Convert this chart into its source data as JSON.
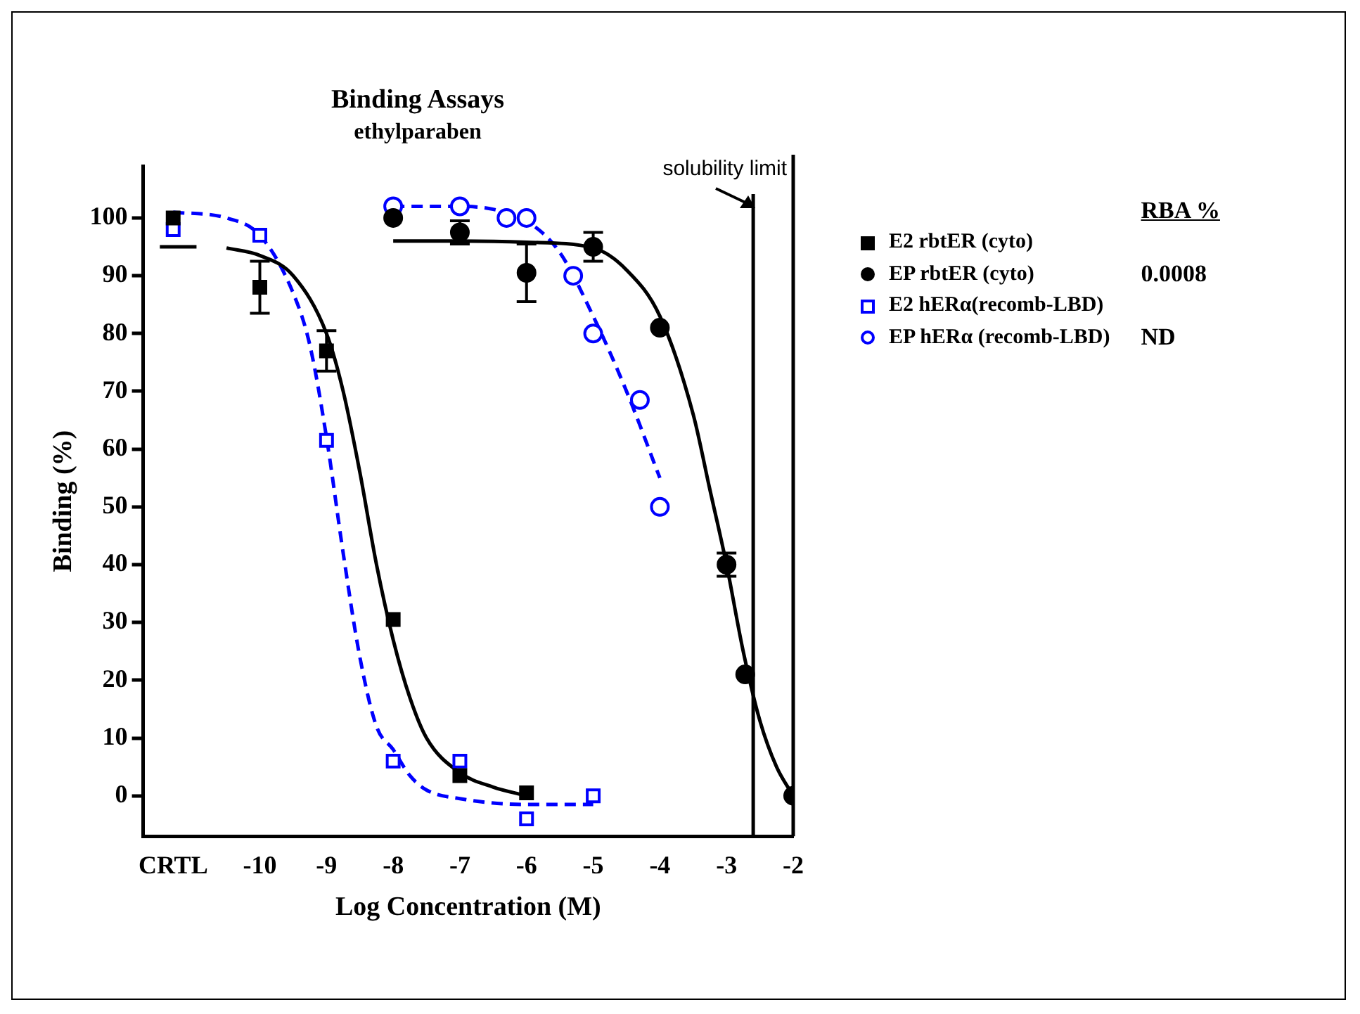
{
  "chart_data": {
    "type": "scatter",
    "title": "Binding Assays",
    "subtitle": "ethylparaben",
    "xlabel": "Log Concentration (M)",
    "ylabel": "Binding (%)",
    "xlim": [
      -11.75,
      -2
    ],
    "xticks": [
      {
        "value": -11.3,
        "label": "CRTL"
      },
      -10,
      -9,
      -8,
      -7,
      -6,
      -5,
      -4,
      -3,
      -2
    ],
    "ylim": [
      -7,
      109
    ],
    "yticks": [
      0,
      10,
      20,
      30,
      40,
      50,
      60,
      70,
      80,
      90,
      100
    ],
    "grid": false,
    "legend": "right",
    "annotations": [
      "RBA %",
      "0.0008",
      "ND"
    ],
    "ref_lines": [
      {
        "axis": "x",
        "value": -2.6,
        "label": "solubility limit",
        "color": "#000000"
      },
      {
        "axis": "x",
        "value": -2,
        "color": "#000000"
      }
    ],
    "series": [
      {
        "name": "E2 rbtER (cyto)",
        "color": "#000000",
        "marker": "square",
        "x": [
          -11.3,
          -10,
          -9,
          -8,
          -7,
          -6
        ],
        "values": [
          100,
          88,
          77,
          30.5,
          3.5,
          0.5
        ],
        "errors": [
          null,
          4.5,
          3.5,
          null,
          null,
          null
        ]
      },
      {
        "name": "EP rbtER (cyto)",
        "color": "#000000",
        "marker": "circle",
        "x": [
          -8,
          -7,
          -6,
          -5,
          -4,
          -3,
          -2.72,
          -2
        ],
        "values": [
          100,
          97.5,
          90.5,
          95,
          81,
          40,
          21,
          0
        ],
        "errors": [
          null,
          2,
          5,
          2.5,
          null,
          2,
          null,
          null
        ]
      },
      {
        "name": "E2 hERα(recomb-LBD)",
        "color": "#0000ff",
        "marker": "square_open",
        "x": [
          -11.3,
          -10,
          -9,
          -8,
          -7,
          -6,
          -5
        ],
        "values": [
          98,
          97,
          61.5,
          6,
          6,
          -4,
          0
        ]
      },
      {
        "name": "EP hERα (recomb-LBD)",
        "color": "#0000ff",
        "marker": "circle_open",
        "x": [
          -8,
          -7,
          -6.3,
          -6,
          -5.3,
          -5,
          -4.3,
          -4
        ],
        "values": [
          102,
          102,
          100,
          100,
          90,
          80,
          68.5,
          50
        ]
      },
      {
        "type": "line",
        "color": "#000000",
        "marker": "none",
        "line_style": "solid",
        "x": [
          -11.5,
          -10.95,
          -10.9,
          -10.5,
          -10,
          -9.5,
          -9,
          -8.75,
          -8.5,
          -8.25,
          -8,
          -7.75,
          -7.5,
          -7,
          -6.5,
          -6
        ],
        "values": [
          95,
          95,
          null,
          94.8,
          93.5,
          90,
          80,
          70,
          56,
          40,
          27,
          17,
          10,
          4,
          1.5,
          0
        ]
      },
      {
        "type": "line",
        "color": "#000000",
        "marker": "none",
        "line_style": "solid",
        "x": [
          -8,
          -7,
          -6,
          -5,
          -4.5,
          -4,
          -3.5,
          -3.25,
          -3,
          -2.75,
          -2.5,
          -2.25,
          -2
        ],
        "values": [
          96,
          96,
          95.8,
          94.8,
          91,
          83,
          66,
          53,
          40,
          25,
          13,
          5,
          0
        ]
      },
      {
        "type": "line",
        "color": "#0000ff",
        "marker": "none",
        "line_style": "dashed",
        "x": [
          -11.3,
          -10.5,
          -10,
          -9.5,
          -9.25,
          -9,
          -8.75,
          -8.5,
          -8.25,
          -8,
          -7.75,
          -7.5,
          -7,
          -6,
          -5
        ],
        "values": [
          101,
          100,
          97,
          87,
          78,
          62,
          42,
          24,
          12,
          8,
          3.5,
          1,
          -0.5,
          -1.5,
          -1.5
        ]
      },
      {
        "type": "line",
        "color": "#0000ff",
        "marker": "none",
        "line_style": "dashed",
        "x": [
          -8,
          -7,
          -6.5,
          -6,
          -5.5,
          -5,
          -4.5,
          -4
        ],
        "values": [
          102,
          102,
          101.5,
          99.5,
          94,
          83,
          70,
          55
        ]
      }
    ]
  }
}
